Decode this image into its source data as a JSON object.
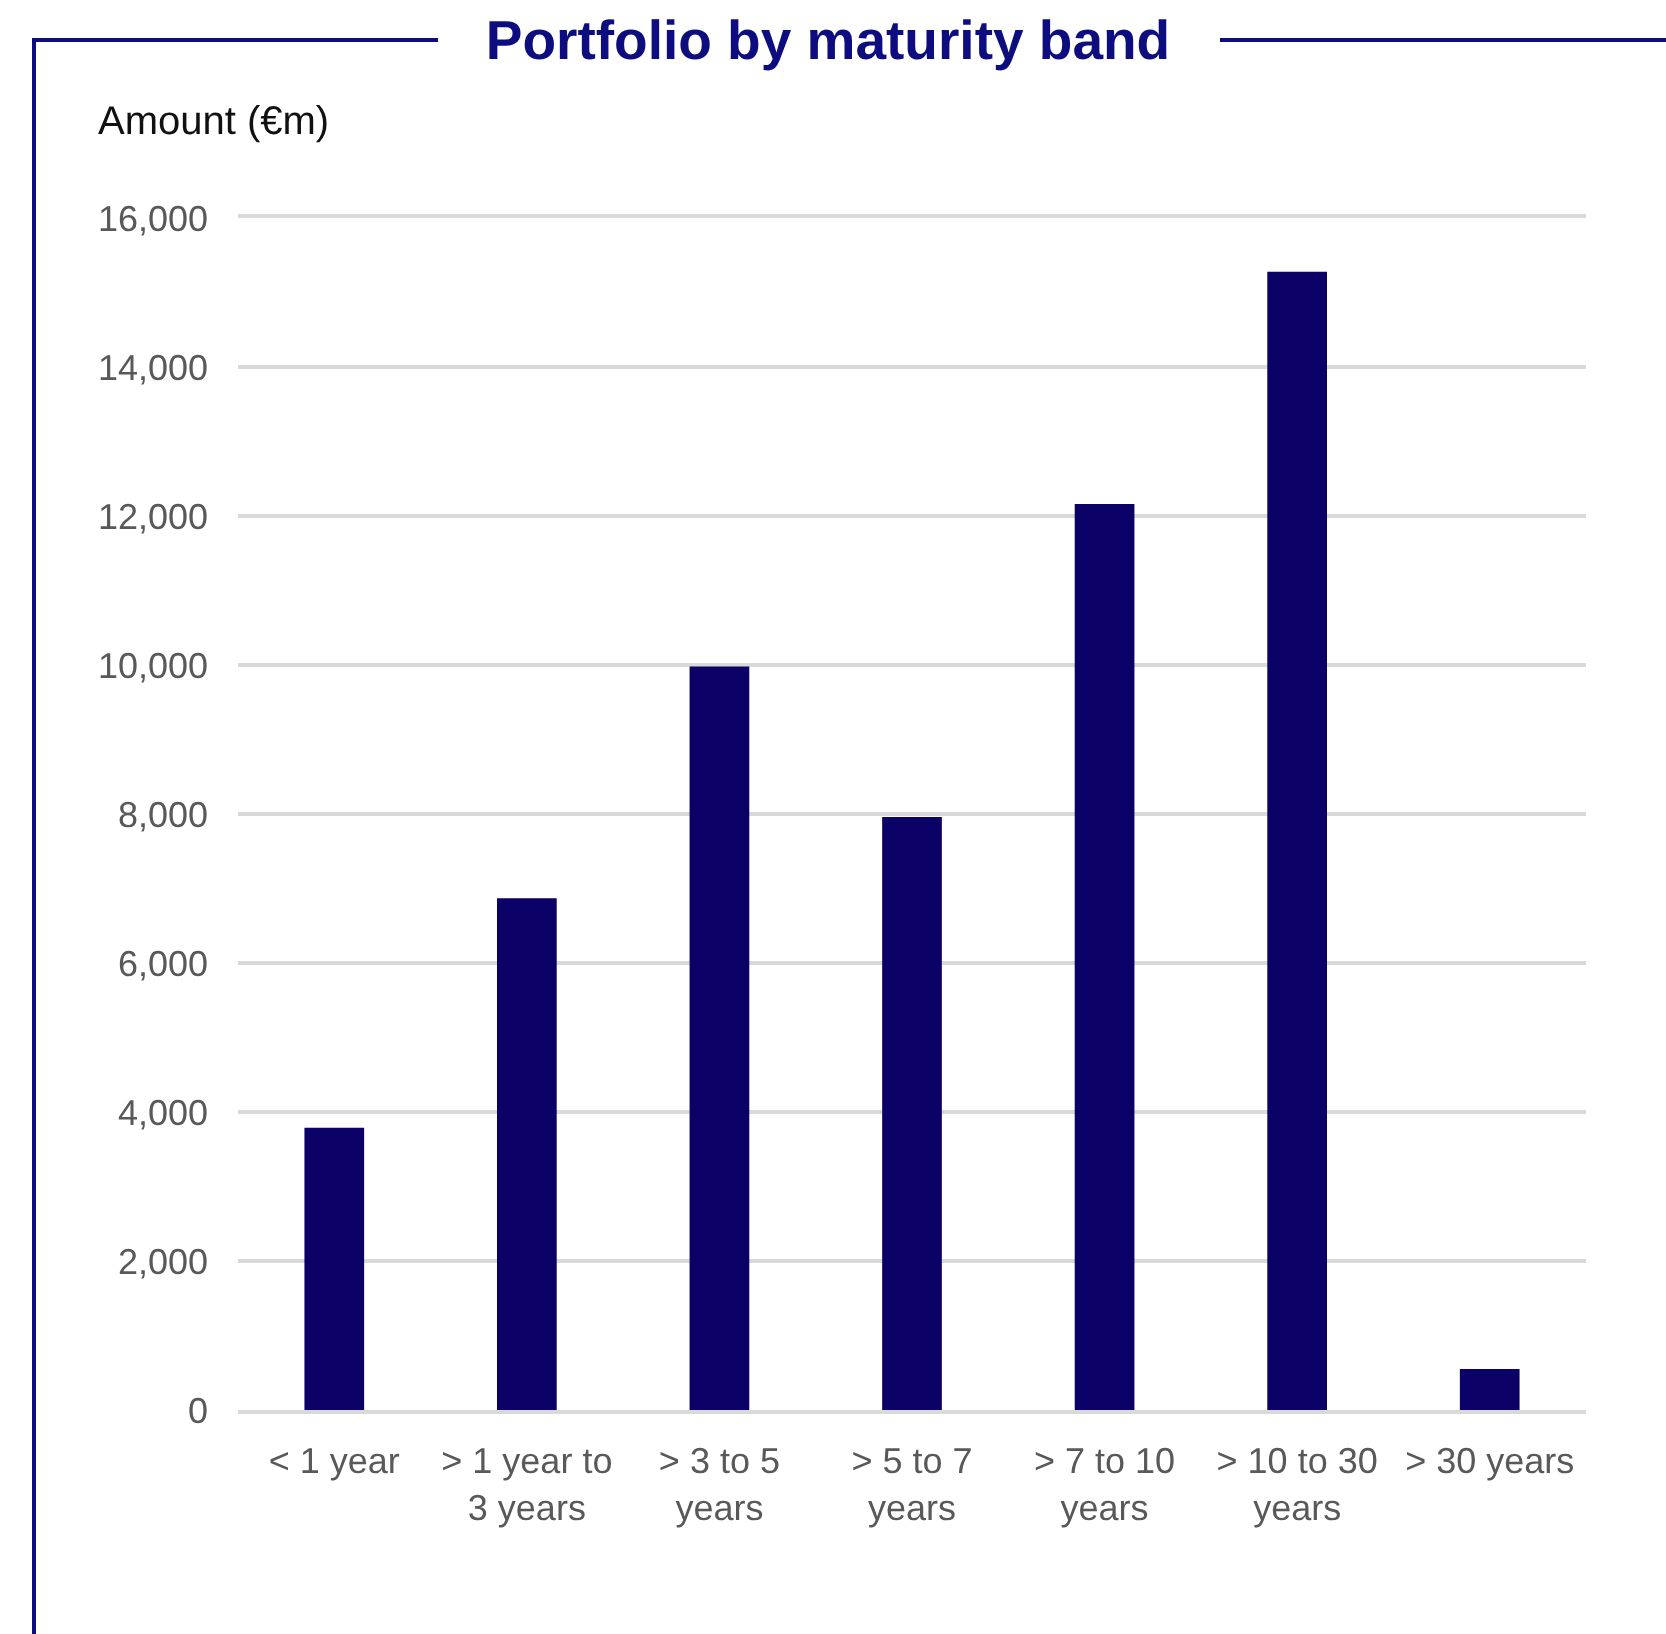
{
  "chart_data": {
    "type": "bar",
    "title": "Portfolio by maturity band",
    "ylabel": "Amount (€m)",
    "categories": [
      "< 1 year",
      "> 1 year to 3 years",
      "> 3 to 5 years",
      "> 5 to 7 years",
      "> 7 to 10 years",
      "> 10 to 30 years",
      "> 30 years"
    ],
    "values": [
      3790,
      6870,
      9980,
      7960,
      12160,
      15280,
      550
    ],
    "color": "#0b0066",
    "ylim": [
      0,
      16000
    ],
    "yticks": [
      0,
      {
        "value": 2000,
        "label": "2,000"
      },
      {
        "value": 4000,
        "label": "4,000"
      },
      {
        "value": 6000,
        "label": "6,000"
      },
      {
        "value": 8000,
        "label": "8,000"
      },
      {
        "value": 10000,
        "label": "10,000"
      },
      {
        "value": 12000,
        "label": "12,000"
      },
      {
        "value": 14000,
        "label": "14,000"
      },
      {
        "value": 16000,
        "label": "16,000"
      }
    ],
    "grid": "y"
  }
}
